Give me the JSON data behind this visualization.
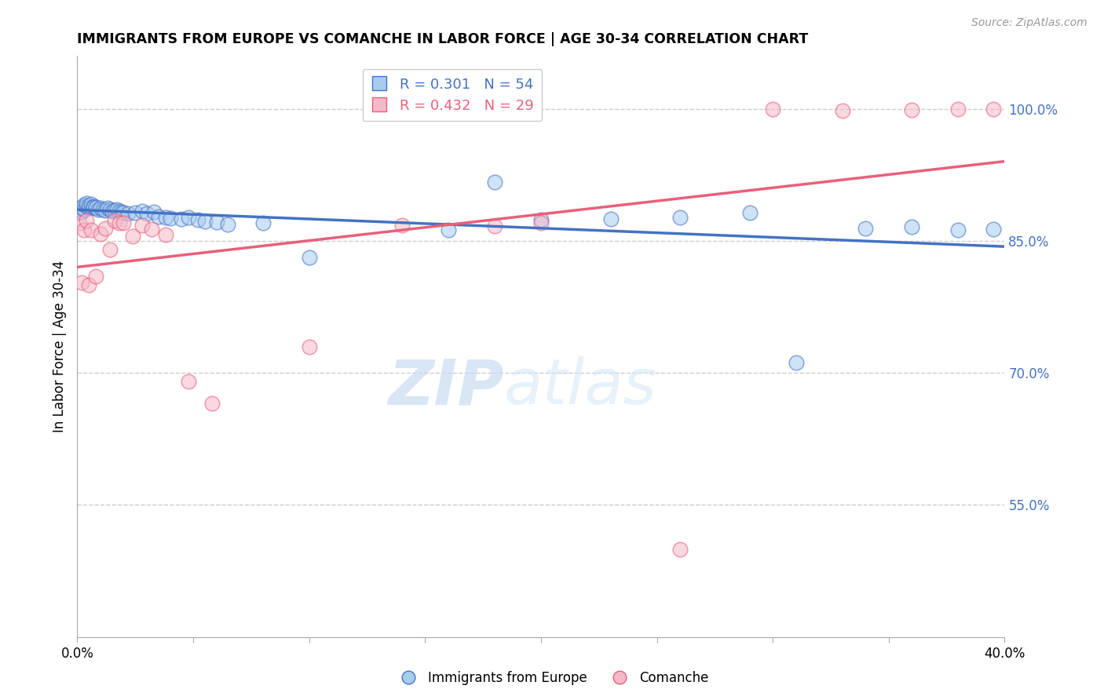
{
  "title": "IMMIGRANTS FROM EUROPE VS COMANCHE IN LABOR FORCE | AGE 30-34 CORRELATION CHART",
  "source": "Source: ZipAtlas.com",
  "ylabel": "In Labor Force | Age 30-34",
  "xlim": [
    0.0,
    0.4
  ],
  "ylim": [
    0.4,
    1.06
  ],
  "xticks": [
    0.0,
    0.05,
    0.1,
    0.15,
    0.2,
    0.25,
    0.3,
    0.35,
    0.4
  ],
  "xtick_labels": [
    "0.0%",
    "",
    "",
    "",
    "",
    "",
    "",
    "",
    "40.0%"
  ],
  "yticks_right": [
    0.55,
    0.7,
    0.85,
    1.0
  ],
  "ytick_labels_right": [
    "55.0%",
    "70.0%",
    "85.0%",
    "100.0%"
  ],
  "blue_color": "#A8CCF0",
  "blue_line_color": "#4472C4",
  "pink_color": "#F5B8C8",
  "pink_line_color": "#E8607A",
  "legend_blue_label": "R = 0.301   N = 54",
  "legend_pink_label": "R = 0.432   N = 29",
  "watermark_zip": "ZIP",
  "watermark_atlas": "atlas",
  "blue_x": [
    0.001,
    0.002,
    0.002,
    0.003,
    0.003,
    0.004,
    0.004,
    0.005,
    0.005,
    0.006,
    0.006,
    0.007,
    0.007,
    0.008,
    0.008,
    0.009,
    0.01,
    0.011,
    0.012,
    0.013,
    0.014,
    0.015,
    0.016,
    0.017,
    0.018,
    0.019,
    0.02,
    0.022,
    0.025,
    0.028,
    0.03,
    0.033,
    0.035,
    0.038,
    0.04,
    0.045,
    0.048,
    0.052,
    0.055,
    0.06,
    0.065,
    0.08,
    0.1,
    0.16,
    0.18,
    0.2,
    0.23,
    0.26,
    0.29,
    0.31,
    0.34,
    0.36,
    0.38,
    0.395
  ],
  "blue_y": [
    0.882,
    0.883,
    0.888,
    0.886,
    0.891,
    0.89,
    0.893,
    0.887,
    0.89,
    0.888,
    0.892,
    0.889,
    0.888,
    0.887,
    0.888,
    0.886,
    0.887,
    0.886,
    0.885,
    0.887,
    0.886,
    0.884,
    0.885,
    0.886,
    0.884,
    0.883,
    0.882,
    0.881,
    0.882,
    0.884,
    0.881,
    0.883,
    0.878,
    0.877,
    0.876,
    0.875,
    0.877,
    0.874,
    0.872,
    0.871,
    0.869,
    0.87,
    0.831,
    0.862,
    0.917,
    0.874,
    0.875,
    0.877,
    0.882,
    0.712,
    0.864,
    0.866,
    0.862,
    0.863
  ],
  "pink_x": [
    0.001,
    0.002,
    0.003,
    0.004,
    0.005,
    0.006,
    0.008,
    0.01,
    0.012,
    0.014,
    0.016,
    0.018,
    0.02,
    0.024,
    0.028,
    0.032,
    0.038,
    0.048,
    0.058,
    0.1,
    0.14,
    0.18,
    0.2,
    0.26,
    0.3,
    0.33,
    0.36,
    0.38,
    0.395
  ],
  "pink_y": [
    0.87,
    0.803,
    0.862,
    0.873,
    0.8,
    0.862,
    0.81,
    0.858,
    0.864,
    0.84,
    0.873,
    0.87,
    0.87,
    0.855,
    0.868,
    0.863,
    0.857,
    0.69,
    0.665,
    0.73,
    0.868,
    0.867,
    0.87,
    0.5,
    1.0,
    0.998,
    0.999,
    1.0,
    1.0
  ],
  "figsize": [
    14.06,
    8.92
  ],
  "dpi": 100
}
